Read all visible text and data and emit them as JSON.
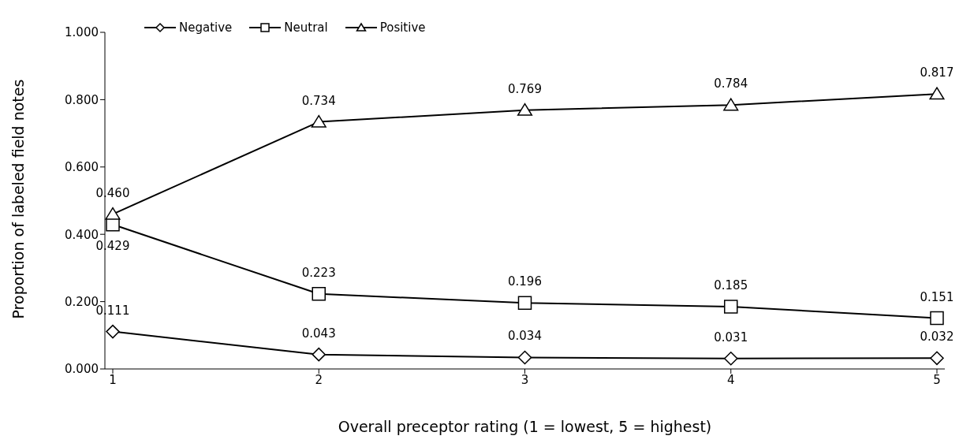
{
  "chart_data": {
    "type": "line",
    "xlabel": "Overall preceptor rating (1 = lowest, 5 = highest)",
    "ylabel": "Proportion of labeled field notes",
    "categories": [
      "1",
      "2",
      "3",
      "4",
      "5"
    ],
    "series": [
      {
        "name": "Negative",
        "color": "#000000",
        "marker": "diamond",
        "values": [
          0.111,
          0.043,
          0.034,
          0.031,
          0.032
        ],
        "value_labels": [
          "0.111",
          "0.043",
          "0.034",
          "0.031",
          "0.032"
        ]
      },
      {
        "name": "Neutral",
        "color": "#000000",
        "marker": "square",
        "values": [
          0.429,
          0.223,
          0.196,
          0.185,
          0.151
        ],
        "value_labels": [
          "0.429",
          "0.223",
          "0.196",
          "0.185",
          "0.151"
        ]
      },
      {
        "name": "Positive",
        "color": "#000000",
        "marker": "triangle",
        "values": [
          0.46,
          0.734,
          0.769,
          0.784,
          0.817
        ],
        "value_labels": [
          "0.460",
          "0.734",
          "0.769",
          "0.784",
          "0.817"
        ]
      }
    ],
    "ylim": [
      0,
      1
    ],
    "yticks": [
      {
        "value": 0,
        "label": "0.000"
      },
      {
        "value": 0.2,
        "label": "0.200"
      },
      {
        "value": 0.4,
        "label": "0.400"
      },
      {
        "value": 0.6,
        "label": "0.600"
      },
      {
        "value": 0.8,
        "label": "0.800"
      },
      {
        "value": 1,
        "label": "1.000"
      }
    ],
    "grid": false,
    "legend": "top left",
    "line_style": "solid"
  }
}
